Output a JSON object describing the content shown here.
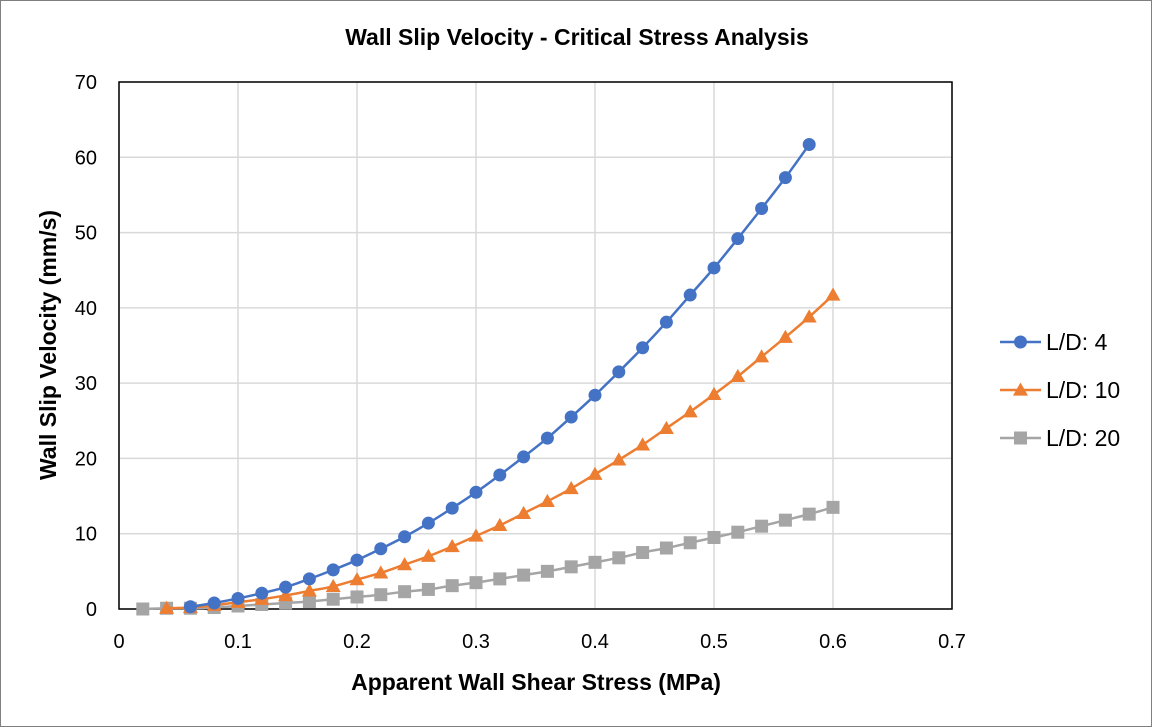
{
  "chart_data": {
    "type": "line",
    "title": "Wall Slip Velocity - Critical Stress Analysis",
    "xlabel": "Apparent Wall Shear Stress (MPa)",
    "ylabel": "Wall Slip Velocity (mm/s)",
    "xlim": [
      0,
      0.7
    ],
    "ylim": [
      0,
      70
    ],
    "xticks": [
      0,
      0.1,
      0.2,
      0.3,
      0.4,
      0.5,
      0.6,
      0.7
    ],
    "xtick_labels": [
      "0",
      "0.1",
      "0.2",
      "0.3",
      "0.4",
      "0.5",
      "0.6",
      "0.7"
    ],
    "yticks": [
      0,
      10,
      20,
      30,
      40,
      50,
      60,
      70
    ],
    "ytick_labels": [
      "0",
      "10",
      "20",
      "30",
      "40",
      "50",
      "60",
      "70"
    ],
    "grid": true,
    "legend_position": "right",
    "series": [
      {
        "name": "L/D: 4",
        "color": "#4472c4",
        "marker": "circle",
        "x": [
          0.06,
          0.08,
          0.1,
          0.12,
          0.14,
          0.16,
          0.18,
          0.2,
          0.22,
          0.24,
          0.26,
          0.28,
          0.3,
          0.32,
          0.34,
          0.36,
          0.38,
          0.4,
          0.42,
          0.44,
          0.46,
          0.48,
          0.5,
          0.52,
          0.54,
          0.56,
          0.58
        ],
        "y": [
          0.3,
          0.8,
          1.4,
          2.1,
          2.9,
          4.0,
          5.2,
          6.5,
          8.0,
          9.6,
          11.4,
          13.4,
          15.5,
          17.8,
          20.2,
          22.7,
          25.5,
          28.4,
          31.5,
          34.7,
          38.1,
          41.7,
          45.3,
          49.2,
          53.2,
          57.3,
          61.7
        ]
      },
      {
        "name": "L/D: 10",
        "color": "#ed7d31",
        "marker": "triangle",
        "x": [
          0.04,
          0.06,
          0.08,
          0.1,
          0.12,
          0.14,
          0.16,
          0.18,
          0.2,
          0.22,
          0.24,
          0.26,
          0.28,
          0.3,
          0.32,
          0.34,
          0.36,
          0.38,
          0.4,
          0.42,
          0.44,
          0.46,
          0.48,
          0.5,
          0.52,
          0.54,
          0.56,
          0.58,
          0.6
        ],
        "y": [
          0.1,
          0.2,
          0.5,
          0.9,
          1.3,
          1.8,
          2.4,
          3.0,
          3.9,
          4.8,
          5.9,
          7.0,
          8.3,
          9.7,
          11.1,
          12.7,
          14.3,
          16.0,
          17.9,
          19.8,
          21.8,
          24.0,
          26.2,
          28.5,
          30.9,
          33.5,
          36.1,
          38.8,
          41.7
        ]
      },
      {
        "name": "L/D: 20",
        "color": "#a5a5a5",
        "marker": "square",
        "x": [
          0.02,
          0.04,
          0.06,
          0.08,
          0.1,
          0.12,
          0.14,
          0.16,
          0.18,
          0.2,
          0.22,
          0.24,
          0.26,
          0.28,
          0.3,
          0.32,
          0.34,
          0.36,
          0.38,
          0.4,
          0.42,
          0.44,
          0.46,
          0.48,
          0.5,
          0.52,
          0.54,
          0.56,
          0.58,
          0.6
        ],
        "y": [
          0.0,
          0.1,
          0.1,
          0.2,
          0.4,
          0.6,
          0.8,
          1.0,
          1.3,
          1.6,
          1.9,
          2.3,
          2.6,
          3.1,
          3.5,
          4.0,
          4.5,
          5.0,
          5.6,
          6.2,
          6.8,
          7.5,
          8.1,
          8.8,
          9.5,
          10.2,
          11.0,
          11.8,
          12.6,
          13.5
        ]
      }
    ]
  }
}
